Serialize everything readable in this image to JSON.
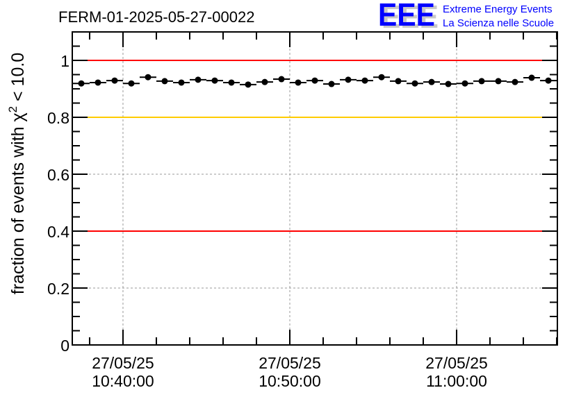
{
  "chart_data": {
    "type": "scatter",
    "title": "FERM-01-2025-05-27-00022",
    "xlabel": "",
    "ylabel": "fraction of events with χ",
    "ylabel_sup": "2",
    "ylabel_suffix": " < 10.0",
    "x_unit": "minutes since 27/05/25 10:40:00",
    "xlim": [
      -3.04,
      26.04
    ],
    "ylim": [
      0,
      1.1
    ],
    "x_ticks": [
      {
        "value": 0,
        "date": "27/05/25",
        "time": "10:40:00"
      },
      {
        "value": 10,
        "date": "27/05/25",
        "time": "10:50:00"
      },
      {
        "value": 20,
        "date": "27/05/25",
        "time": "11:00:00"
      }
    ],
    "y_ticks": [
      {
        "value": 0,
        "label": "0"
      },
      {
        "value": 0.2,
        "label": "0.2"
      },
      {
        "value": 0.4,
        "label": "0.4"
      },
      {
        "value": 0.6,
        "label": "0.6"
      },
      {
        "value": 0.8,
        "label": "0.8"
      },
      {
        "value": 1.0,
        "label": "1"
      }
    ],
    "grid": true,
    "reference_lines": [
      {
        "y": 1.0,
        "color": "#ff0000"
      },
      {
        "y": 0.8,
        "color": "#ffcc00"
      },
      {
        "y": 0.4,
        "color": "#ff0000"
      }
    ],
    "series": [
      {
        "name": "fraction",
        "x": [
          -2.5,
          -1.5,
          -0.5,
          0.5,
          1.5,
          2.5,
          3.5,
          4.5,
          5.5,
          6.5,
          7.5,
          8.5,
          9.5,
          10.5,
          11.5,
          12.5,
          13.5,
          14.5,
          15.5,
          16.5,
          17.5,
          18.5,
          19.5,
          20.5,
          21.5,
          22.5,
          23.5,
          24.5,
          25.5
        ],
        "y": [
          0.919,
          0.922,
          0.929,
          0.919,
          0.941,
          0.927,
          0.922,
          0.932,
          0.929,
          0.922,
          0.915,
          0.924,
          0.934,
          0.922,
          0.929,
          0.917,
          0.932,
          0.929,
          0.941,
          0.927,
          0.919,
          0.924,
          0.917,
          0.919,
          0.927,
          0.927,
          0.924,
          0.939,
          0.929
        ],
        "x_err": 0.5
      }
    ]
  },
  "logo": {
    "letters": "EEE",
    "line1": "Extreme Energy Events",
    "line2": "La Scienza nelle Scuole",
    "color": "#0000ff"
  }
}
